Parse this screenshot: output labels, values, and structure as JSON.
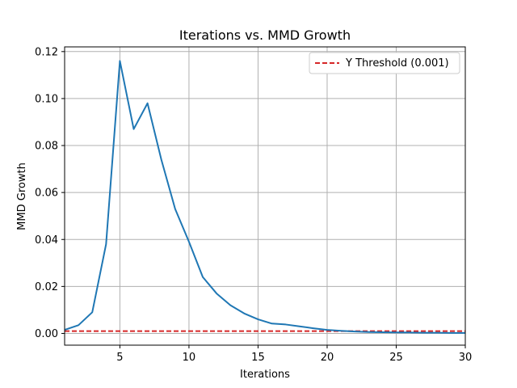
{
  "chart_data": {
    "type": "line",
    "title": "Iterations vs. MMD Growth",
    "xlabel": "Iterations",
    "ylabel": "MMD Growth",
    "xlim": [
      1,
      30
    ],
    "ylim": [
      -0.005,
      0.122
    ],
    "xticks": [
      5,
      10,
      15,
      20,
      25,
      30
    ],
    "xtick_labels": [
      "5",
      "10",
      "15",
      "20",
      "25",
      "30"
    ],
    "yticks": [
      0.0,
      0.02,
      0.04,
      0.06,
      0.08,
      0.1,
      0.12
    ],
    "ytick_labels": [
      "0.00",
      "0.02",
      "0.04",
      "0.06",
      "0.08",
      "0.10",
      "0.12"
    ],
    "grid": true,
    "legend_position": "top-right",
    "series": [
      {
        "values_x": [
          1,
          2,
          3,
          4,
          5,
          6,
          7,
          8,
          9,
          10,
          11,
          12,
          13,
          14,
          15,
          16,
          17,
          18,
          19,
          20,
          21,
          22,
          23,
          24,
          25,
          26,
          27,
          28,
          29,
          30
        ],
        "values_y": [
          0.0015,
          0.0035,
          0.009,
          0.038,
          0.116,
          0.087,
          0.098,
          0.074,
          0.053,
          0.039,
          0.024,
          0.017,
          0.012,
          0.0085,
          0.006,
          0.0042,
          0.0038,
          0.003,
          0.0022,
          0.0015,
          0.0011,
          0.0008,
          0.0006,
          0.0005,
          0.0004,
          0.0004,
          0.0003,
          0.0003,
          0.0002,
          0.0002
        ],
        "color": "#1f77b4"
      }
    ],
    "threshold": {
      "name": "Y Threshold (0.001)",
      "value": 0.001,
      "color": "#d62728",
      "style": "dashed"
    }
  }
}
